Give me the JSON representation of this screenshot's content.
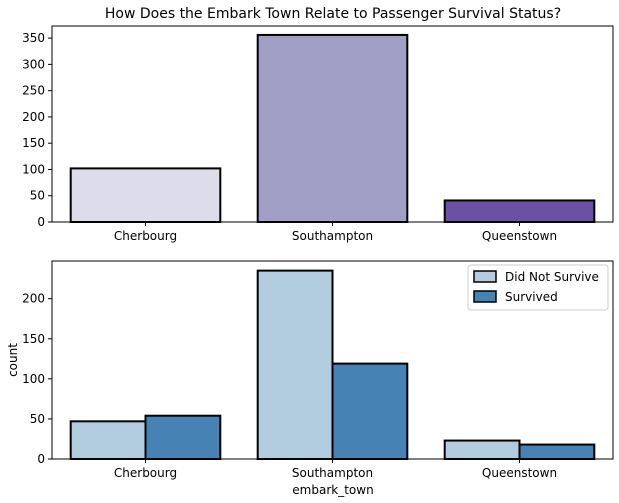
{
  "chart_data": [
    {
      "type": "bar",
      "title": "How Does the Embark Town Relate to Passenger Survival Status?",
      "xlabel": "",
      "ylabel": "",
      "categories": [
        "Cherbourg",
        "Southampton",
        "Queenstown"
      ],
      "values": [
        102,
        356,
        41
      ],
      "colors": [
        "#dcdcea",
        "#a29fc7",
        "#6a51a3"
      ],
      "ylim": [
        0,
        373
      ],
      "yticks": [
        0,
        50,
        100,
        150,
        200,
        250,
        300,
        350
      ],
      "grid": false
    },
    {
      "type": "bar",
      "title": "",
      "xlabel": "embark_town",
      "ylabel": "count",
      "categories": [
        "Cherbourg",
        "Southampton",
        "Queenstown"
      ],
      "series": [
        {
          "name": "Did Not Survive",
          "values": [
            47,
            235,
            23
          ],
          "color": "#b3cde0"
        },
        {
          "name": "Survived",
          "values": [
            54,
            119,
            18
          ],
          "color": "#4682b4"
        }
      ],
      "ylim": [
        0,
        247
      ],
      "yticks": [
        0,
        50,
        100,
        150,
        200
      ],
      "legend": "top-right",
      "grid": false
    }
  ]
}
